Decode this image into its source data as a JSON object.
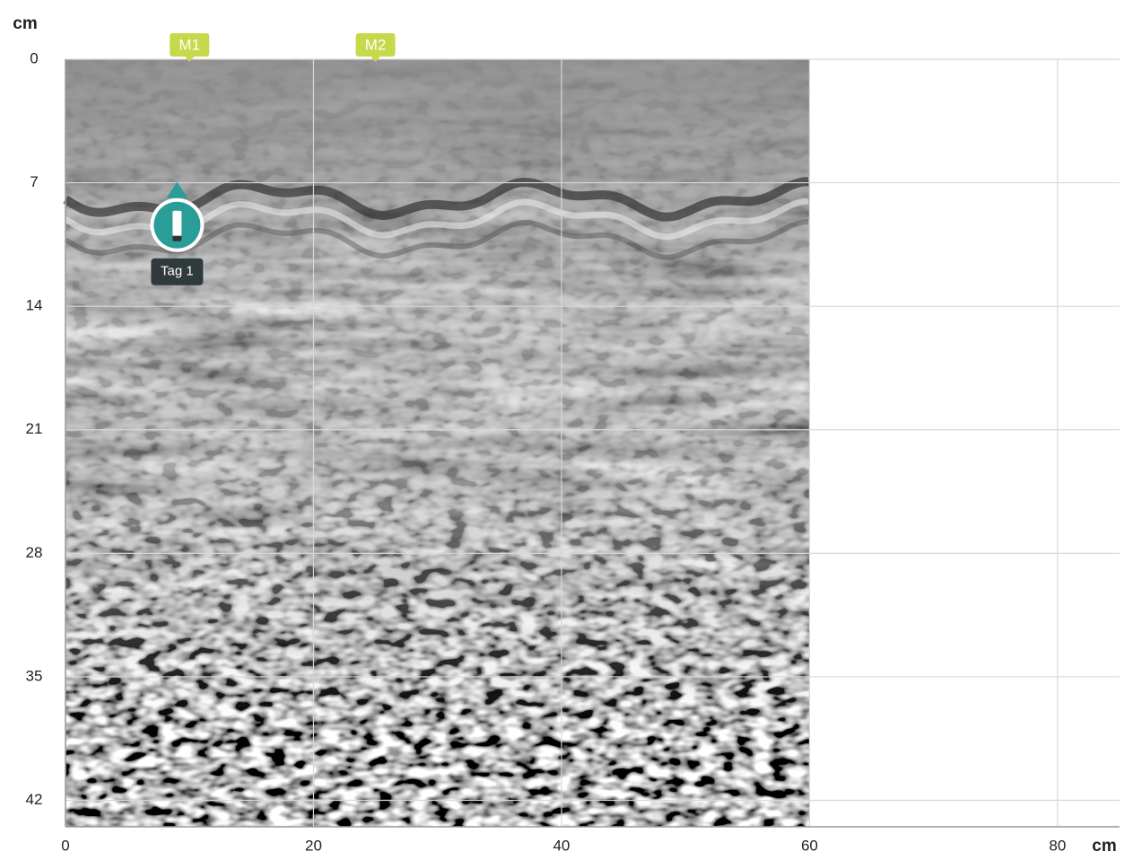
{
  "chart_data": {
    "type": "radargram",
    "x_label": "cm",
    "y_label": "cm",
    "xlim": [
      0,
      85
    ],
    "xticks": [
      0,
      20,
      40,
      60,
      80
    ],
    "ylim": [
      0,
      43.5
    ],
    "yticks": [
      0,
      7,
      14,
      21,
      28,
      35,
      42
    ],
    "grid": true,
    "scan_range": [
      0,
      60
    ],
    "markers": [
      {
        "label": "M1",
        "x": 10
      },
      {
        "label": "M2",
        "x": 25
      }
    ],
    "tags": [
      {
        "label": "Tag 1",
        "x": 9,
        "y": 9.4,
        "color": "#2a9d98"
      }
    ],
    "marker_color": "#c5d94a"
  }
}
